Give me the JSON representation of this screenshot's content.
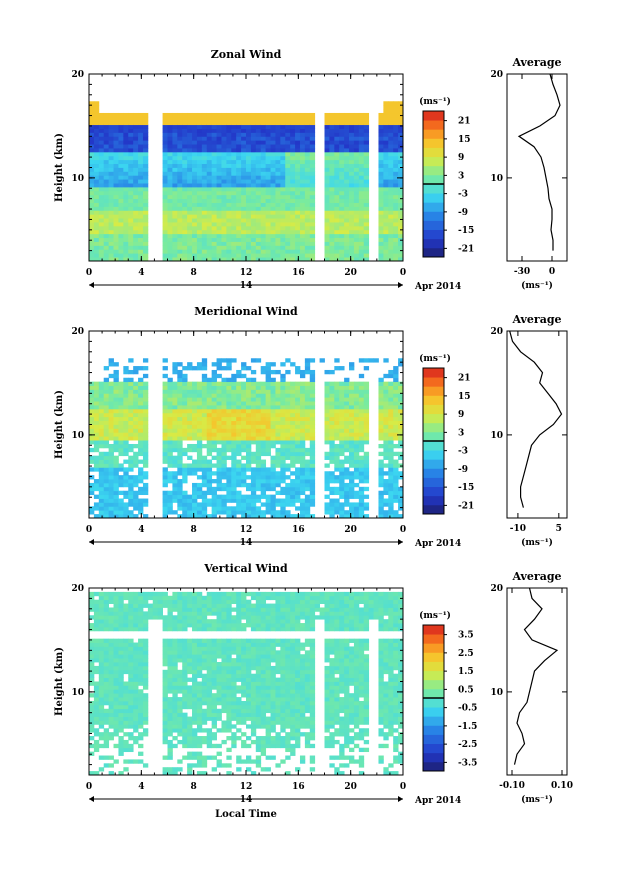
{
  "chart_data": [
    {
      "type": "heatmap",
      "title": "Zonal Wind",
      "ylabel": "Height (km)",
      "xlabel": "",
      "x_ticks": [
        "0",
        "4",
        "8",
        "12",
        "16",
        "20",
        "0"
      ],
      "y_ticks": [
        "10",
        "20"
      ],
      "ylim": [
        2,
        20
      ],
      "xlim": [
        0,
        24
      ],
      "date_label": "14",
      "month_label": "Apr 2014",
      "colorbar": {
        "unit": "(ms⁻¹)",
        "ticks": [
          "21",
          "15",
          "9",
          "3",
          "-3",
          "-9",
          "-15",
          "-21"
        ],
        "range": [
          -24,
          24
        ]
      },
      "profile": {
        "title": "Average",
        "xlabel": "(ms⁻¹)",
        "x_ticks": [
          "-30",
          "0"
        ],
        "y_ticks": [
          "10",
          "20"
        ],
        "xlim": [
          -45,
          15
        ],
        "heights": [
          3,
          4,
          5,
          6,
          7,
          8,
          9,
          10,
          11,
          12,
          13,
          14,
          15,
          16,
          17,
          18,
          19,
          20
        ],
        "values": [
          1,
          1,
          -1,
          0,
          0,
          -3,
          -4,
          -6,
          -8,
          -11,
          -18,
          -33,
          -12,
          3,
          8,
          5,
          1,
          -2
        ]
      }
    },
    {
      "type": "heatmap",
      "title": "Meridional Wind",
      "ylabel": "Height (km)",
      "xlabel": "",
      "x_ticks": [
        "0",
        "4",
        "8",
        "12",
        "16",
        "20",
        "0"
      ],
      "y_ticks": [
        "10",
        "20"
      ],
      "ylim": [
        2,
        20
      ],
      "xlim": [
        0,
        24
      ],
      "date_label": "14",
      "month_label": "Apr 2014",
      "colorbar": {
        "unit": "(ms⁻¹)",
        "ticks": [
          "21",
          "15",
          "9",
          "3",
          "-3",
          "-9",
          "-15",
          "-21"
        ],
        "range": [
          -24,
          24
        ]
      },
      "profile": {
        "title": "Average",
        "xlabel": "(ms⁻¹)",
        "x_ticks": [
          "-10",
          "5"
        ],
        "y_ticks": [
          "10",
          "20"
        ],
        "xlim": [
          -14,
          8
        ],
        "heights": [
          3,
          4,
          5,
          6,
          7,
          8,
          9,
          10,
          11,
          12,
          13,
          14,
          15,
          16,
          17,
          18,
          19,
          20
        ],
        "values": [
          -8,
          -9,
          -9,
          -8,
          -7,
          -6,
          -5,
          -2,
          3,
          6,
          4,
          1,
          -2,
          -1,
          -4,
          -9,
          -12,
          -13
        ]
      }
    },
    {
      "type": "heatmap",
      "title": "Vertical Wind",
      "ylabel": "Height (km)",
      "xlabel": "Local Time",
      "x_ticks": [
        "0",
        "4",
        "8",
        "12",
        "16",
        "20",
        "0"
      ],
      "y_ticks": [
        "10",
        "20"
      ],
      "ylim": [
        2,
        20
      ],
      "xlim": [
        0,
        24
      ],
      "date_label": "14",
      "month_label": "Apr 2014",
      "colorbar": {
        "unit": "(ms⁻¹)",
        "ticks": [
          "3.5",
          "2.5",
          "1.5",
          "0.5",
          "-0.5",
          "-1.5",
          "-2.5",
          "-3.5"
        ],
        "range": [
          -4,
          4
        ]
      },
      "profile": {
        "title": "Average",
        "xlabel": "(ms⁻¹)",
        "x_ticks": [
          "-0.10",
          "0.10"
        ],
        "y_ticks": [
          "10",
          "20"
        ],
        "xlim": [
          -0.12,
          0.12
        ],
        "heights": [
          3,
          4,
          5,
          6,
          7,
          8,
          9,
          10,
          11,
          12,
          13,
          14,
          15,
          16,
          17,
          18,
          19,
          20
        ],
        "values": [
          -0.09,
          -0.08,
          -0.05,
          -0.06,
          -0.08,
          -0.07,
          -0.04,
          -0.03,
          -0.02,
          -0.01,
          0.03,
          0.08,
          -0.02,
          -0.05,
          -0.01,
          0.02,
          -0.02,
          -0.03
        ]
      }
    }
  ]
}
